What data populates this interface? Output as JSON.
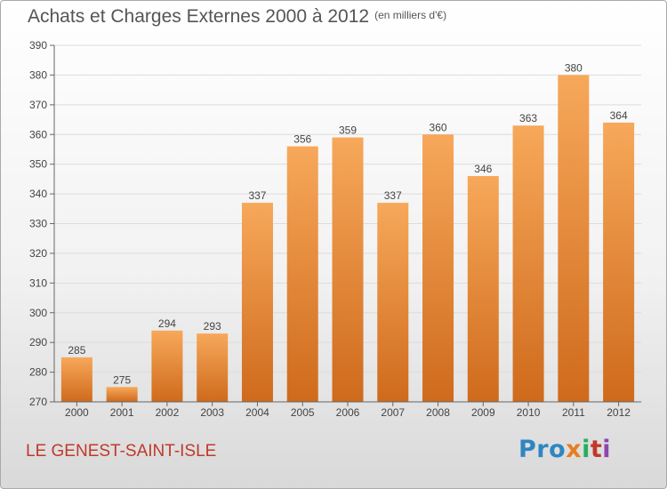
{
  "title": "Achats et Charges Externes 2000 à 2012",
  "unit": "(en milliers d'€)",
  "place": "LE GENEST-SAINT-ISLE",
  "brand": {
    "p1": "Pro",
    "p2": "x",
    "p3": "i",
    "p4": "t",
    "p5": "i"
  },
  "colors": {
    "bar_top": "#f7a85a",
    "bar_bottom": "#cf6a1c",
    "place": "#c0392b",
    "grid": "#dcdcdc"
  },
  "chart_data": {
    "type": "bar",
    "title": "Achats et Charges Externes 2000 à 2012",
    "subtitle": "(en milliers d'€)",
    "xlabel": "",
    "ylabel": "",
    "categories": [
      "2000",
      "2001",
      "2002",
      "2003",
      "2004",
      "2005",
      "2006",
      "2007",
      "2008",
      "2009",
      "2010",
      "2011",
      "2012"
    ],
    "values": [
      285,
      275,
      294,
      293,
      337,
      356,
      359,
      337,
      360,
      346,
      363,
      380,
      364
    ],
    "ylim": [
      270,
      390
    ],
    "yticks": [
      270,
      280,
      290,
      300,
      310,
      320,
      330,
      340,
      350,
      360,
      370,
      380,
      390
    ],
    "grid": true,
    "data_labels": true
  }
}
